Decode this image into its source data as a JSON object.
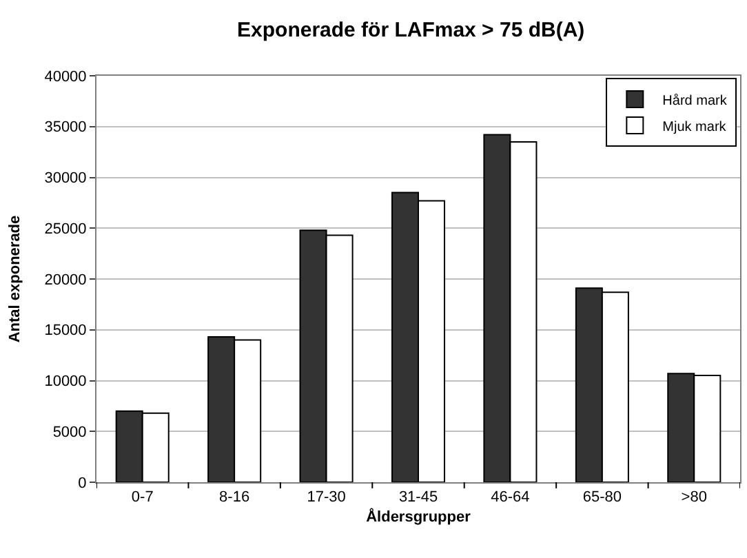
{
  "chart_data": {
    "type": "bar",
    "title": "Exponerade för LAFmax > 75 dB(A)",
    "xlabel": "Åldersgrupper",
    "ylabel": "Antal exponerade",
    "categories": [
      "0-7",
      "8-16",
      "17-30",
      "31-45",
      "46-64",
      "65-80",
      ">80"
    ],
    "series": [
      {
        "name": "Hård mark",
        "color": "#333333",
        "values": [
          7000,
          14300,
          24800,
          28500,
          34200,
          19100,
          10700
        ]
      },
      {
        "name": "Mjuk mark",
        "color": "#ffffff",
        "values": [
          6800,
          14000,
          24300,
          27700,
          33500,
          18700,
          10500
        ]
      }
    ],
    "ylim": [
      0,
      40000
    ],
    "yticks": [
      0,
      5000,
      10000,
      15000,
      20000,
      25000,
      30000,
      35000,
      40000
    ],
    "grid": "y",
    "legend": "top right"
  }
}
